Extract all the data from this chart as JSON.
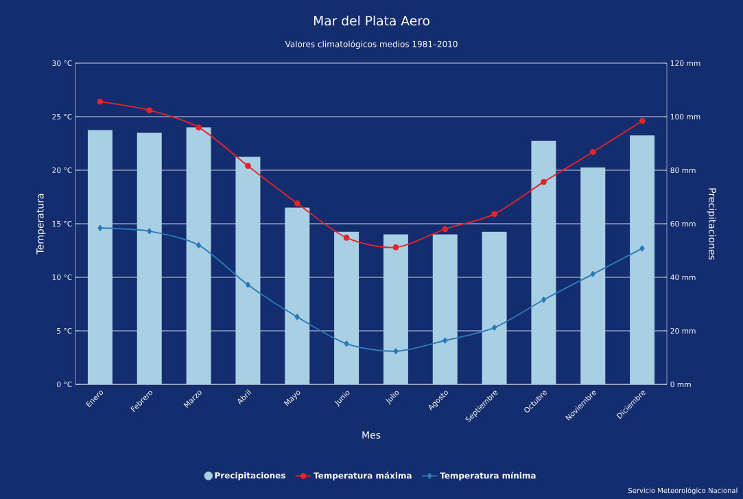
{
  "chart_data": {
    "type": "bar",
    "title": "Mar del Plata Aero",
    "subtitle": "Valores climatológicos medios 1981–2010",
    "xlabel": "Mes",
    "ylabel": "Temperatura",
    "y2label": "Precipitaciones",
    "categories": [
      "Enero",
      "Febrero",
      "Marzo",
      "Abril",
      "Mayo",
      "Junio",
      "Julio",
      "Agosto",
      "Septiembre",
      "Octubre",
      "Noviembre",
      "Diciembre"
    ],
    "series": [
      {
        "name": "Precipitaciones",
        "axis": "y2",
        "color": "#a8cfe4",
        "values": [
          95,
          94,
          96,
          85,
          66,
          57,
          56,
          56,
          57,
          91,
          81,
          93
        ]
      },
      {
        "name": "Temperatura máxima",
        "type": "line",
        "color": "#e3242b",
        "marker": "circle",
        "values": [
          26.4,
          25.6,
          24.0,
          20.4,
          16.9,
          13.7,
          12.8,
          14.5,
          15.9,
          18.9,
          21.7,
          24.6
        ]
      },
      {
        "name": "Temperatura mínima",
        "type": "line",
        "color": "#2a7ab8",
        "marker": "diamond",
        "values": [
          14.6,
          14.3,
          13.0,
          9.3,
          6.3,
          3.8,
          3.1,
          4.1,
          5.3,
          7.9,
          10.3,
          12.7
        ]
      }
    ],
    "ylim": [
      0,
      30
    ],
    "yticks": [
      {
        "value": 0,
        "label": "0 °C"
      },
      {
        "value": 5,
        "label": "5 °C"
      },
      {
        "value": 10,
        "label": "10 °C"
      },
      {
        "value": 15,
        "label": "15 °C"
      },
      {
        "value": 20,
        "label": "20 °C"
      },
      {
        "value": 25,
        "label": "25 °C"
      },
      {
        "value": 30,
        "label": "30 °C"
      }
    ],
    "y2lim": [
      0,
      120
    ],
    "y2ticks": [
      {
        "value": 0,
        "label": "0 mm"
      },
      {
        "value": 20,
        "label": "20 mm"
      },
      {
        "value": 40,
        "label": "40 mm"
      },
      {
        "value": 60,
        "label": "60 mm"
      },
      {
        "value": 80,
        "label": "80 mm"
      },
      {
        "value": 100,
        "label": "100 mm"
      },
      {
        "value": 120,
        "label": "120 mm"
      }
    ],
    "grid": "y",
    "legend": "bottom",
    "annotations": [
      "Servicio Meteorológico Nacional"
    ]
  }
}
